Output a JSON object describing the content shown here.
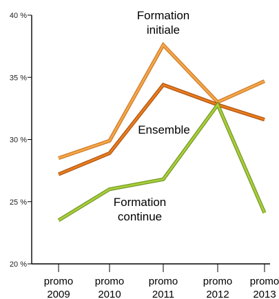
{
  "chart_data": {
    "type": "line",
    "title": "",
    "xlabel": "",
    "ylabel": "",
    "categories": [
      [
        "promo",
        "2009"
      ],
      [
        "promo",
        "2010"
      ],
      [
        "promo",
        "2011"
      ],
      [
        "promo",
        "2012"
      ],
      [
        "promo",
        "2013"
      ]
    ],
    "ylim": [
      20,
      40
    ],
    "yticks": [
      {
        "value": 20,
        "label": "20 %"
      },
      {
        "value": 25,
        "label": "25 %"
      },
      {
        "value": 30,
        "label": "30 %"
      },
      {
        "value": 35,
        "label": "35 %"
      },
      {
        "value": 40,
        "label": "40 %"
      }
    ],
    "grid": false,
    "series": [
      {
        "name": [
          "Formation",
          "initiale"
        ],
        "color": "#f4a64a",
        "edge": "#c9721c",
        "values": [
          28.5,
          29.9,
          37.6,
          33.0,
          34.7
        ]
      },
      {
        "name": [
          "Ensemble"
        ],
        "color": "#e87c1e",
        "edge": "#a84d0c",
        "values": [
          27.2,
          28.9,
          34.4,
          32.8,
          31.6
        ]
      },
      {
        "name": [
          "Formation",
          "continue"
        ],
        "color": "#a6cf3a",
        "edge": "#6f8f1e",
        "values": [
          23.5,
          26.0,
          26.8,
          32.8,
          24.1
        ]
      }
    ]
  }
}
